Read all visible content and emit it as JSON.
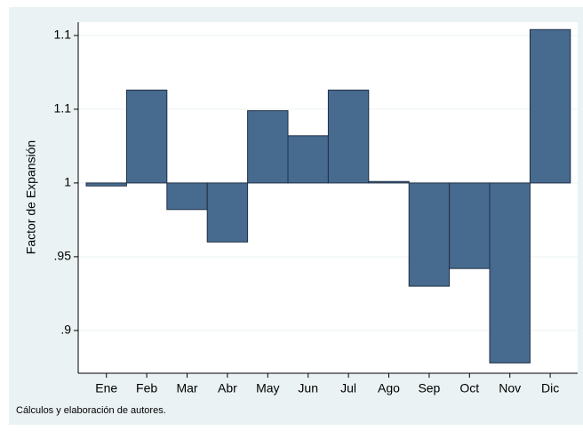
{
  "chart_data": {
    "type": "bar",
    "y_label": "Factor de Expansión",
    "note": "Cálculos y elaboración de autores.",
    "categories": [
      "Ene",
      "Feb",
      "Mar",
      "Abr",
      "May",
      "Jun",
      "Jul",
      "Ago",
      "Sep",
      "Oct",
      "Nov",
      "Dic"
    ],
    "values": [
      0.998,
      1.063,
      0.982,
      0.96,
      1.049,
      1.032,
      1.063,
      1.001,
      0.93,
      0.942,
      0.878,
      1.104
    ],
    "bar_base": 1,
    "color": "#476a8f",
    "ylim": [
      0.871,
      1.109
    ],
    "yticks": [
      {
        "value": 0.9,
        "label": ".9"
      },
      {
        "value": 0.95,
        "label": ".95"
      },
      1,
      {
        "value": 1.05,
        "label": "1.1"
      },
      1.1
    ],
    "grid": true
  }
}
